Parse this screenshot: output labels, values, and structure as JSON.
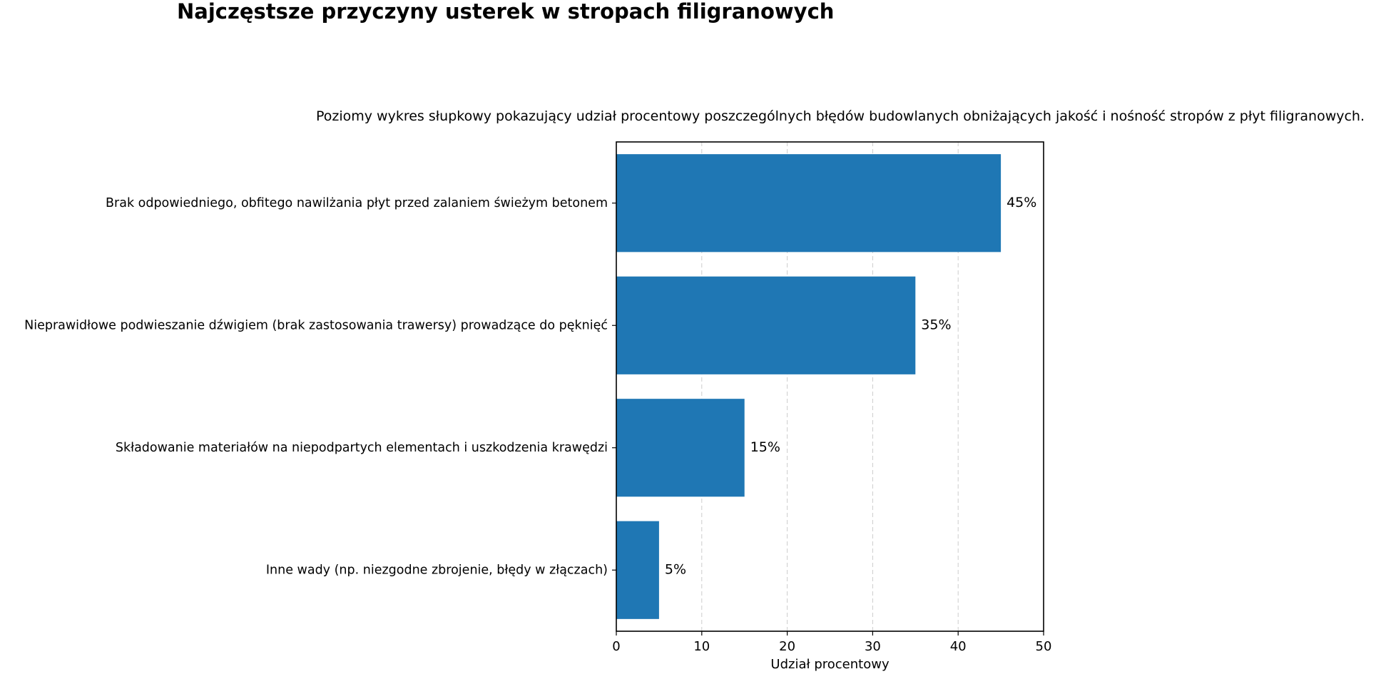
{
  "chart_data": {
    "type": "bar",
    "orientation": "horizontal",
    "title": "Najczęstsze przyczyny usterek w stropach filigranowych",
    "subtitle": "Poziomy wykres słupkowy pokazujący udział procentowy poszczególnych błędów budowlanych obniżających jakość i nośność stropów z płyt filigranowych.",
    "xlabel": "Udział procentowy",
    "ylabel": "",
    "categories": [
      "Brak odpowiedniego, obfitego nawilżania płyt przed zalaniem świeżym betonem",
      "Nieprawidłowe podwieszanie dźwigiem (brak zastosowania trawersy) prowadzące do pęknięć",
      "Składowanie materiałów na niepodpartych elementach i uszkodzenia krawędzi",
      "Inne wady (np. niezgodne zbrojenie, błędy w złączach)"
    ],
    "values": [
      45,
      35,
      15,
      5
    ],
    "data_labels": [
      "45%",
      "35%",
      "15%",
      "5%"
    ],
    "xlim": [
      0,
      50
    ],
    "xticks": [
      0,
      10,
      20,
      30,
      40,
      50
    ],
    "xtick_labels": [
      "0",
      "10",
      "20",
      "30",
      "40",
      "50"
    ],
    "grid": "x-axis dashed",
    "bar_color": "#1f77b4"
  }
}
